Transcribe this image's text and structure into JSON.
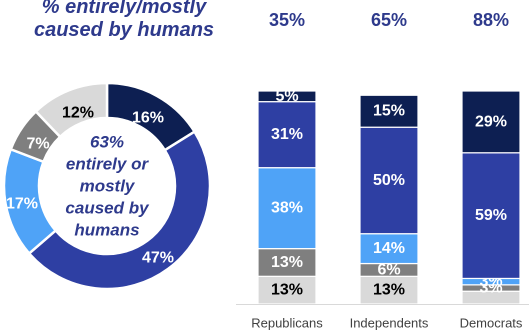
{
  "title_lines": [
    "% entirely/mostly",
    "caused by humans"
  ],
  "colors": {
    "dark_navy": "#0D1F52",
    "royal_blue": "#2E3FA3",
    "light_blue": "#4FA3F7",
    "dark_gray": "#7F7F7F",
    "light_gray": "#D9D9D9",
    "header_text": "#2E3A8C",
    "axis_text": "#404040"
  },
  "chart_data": [
    {
      "type": "pie",
      "style": "donut",
      "center_label_lines": [
        "63%",
        "entirely or",
        "mostly",
        "caused by",
        "humans"
      ],
      "slices": [
        {
          "label": "16%",
          "value": 16,
          "color": "#0D1F52"
        },
        {
          "label": "47%",
          "value": 47,
          "color": "#2E3FA3"
        },
        {
          "label": "17%",
          "value": 17,
          "color": "#4FA3F7"
        },
        {
          "label": "7%",
          "value": 7,
          "color": "#7F7F7F"
        },
        {
          "label": "12%",
          "value": 12,
          "color": "#D9D9D9"
        }
      ]
    },
    {
      "type": "bar",
      "stacked": true,
      "categories": [
        "Republicans",
        "Independents",
        "Democrats"
      ],
      "header_values": [
        "35%",
        "65%",
        "88%"
      ],
      "series": [
        {
          "values": [
            13,
            13,
            6
          ],
          "labels": [
            "13%",
            "13%",
            ""
          ],
          "color": "#D9D9D9",
          "text_color": "#000000"
        },
        {
          "values": [
            13,
            6,
            3
          ],
          "labels": [
            "13%",
            "6%",
            "3%"
          ],
          "color": "#7F7F7F",
          "text_color": "#ffffff"
        },
        {
          "values": [
            38,
            14,
            3
          ],
          "labels": [
            "38%",
            "14%",
            "3%"
          ],
          "color": "#4FA3F7",
          "text_color": "#ffffff"
        },
        {
          "values": [
            31,
            50,
            59
          ],
          "labels": [
            "31%",
            "50%",
            "59%"
          ],
          "color": "#2E3FA3",
          "text_color": "#ffffff"
        },
        {
          "values": [
            5,
            15,
            29
          ],
          "labels": [
            "5%",
            "15%",
            "29%"
          ],
          "color": "#0D1F52",
          "text_color": "#ffffff"
        }
      ]
    }
  ]
}
